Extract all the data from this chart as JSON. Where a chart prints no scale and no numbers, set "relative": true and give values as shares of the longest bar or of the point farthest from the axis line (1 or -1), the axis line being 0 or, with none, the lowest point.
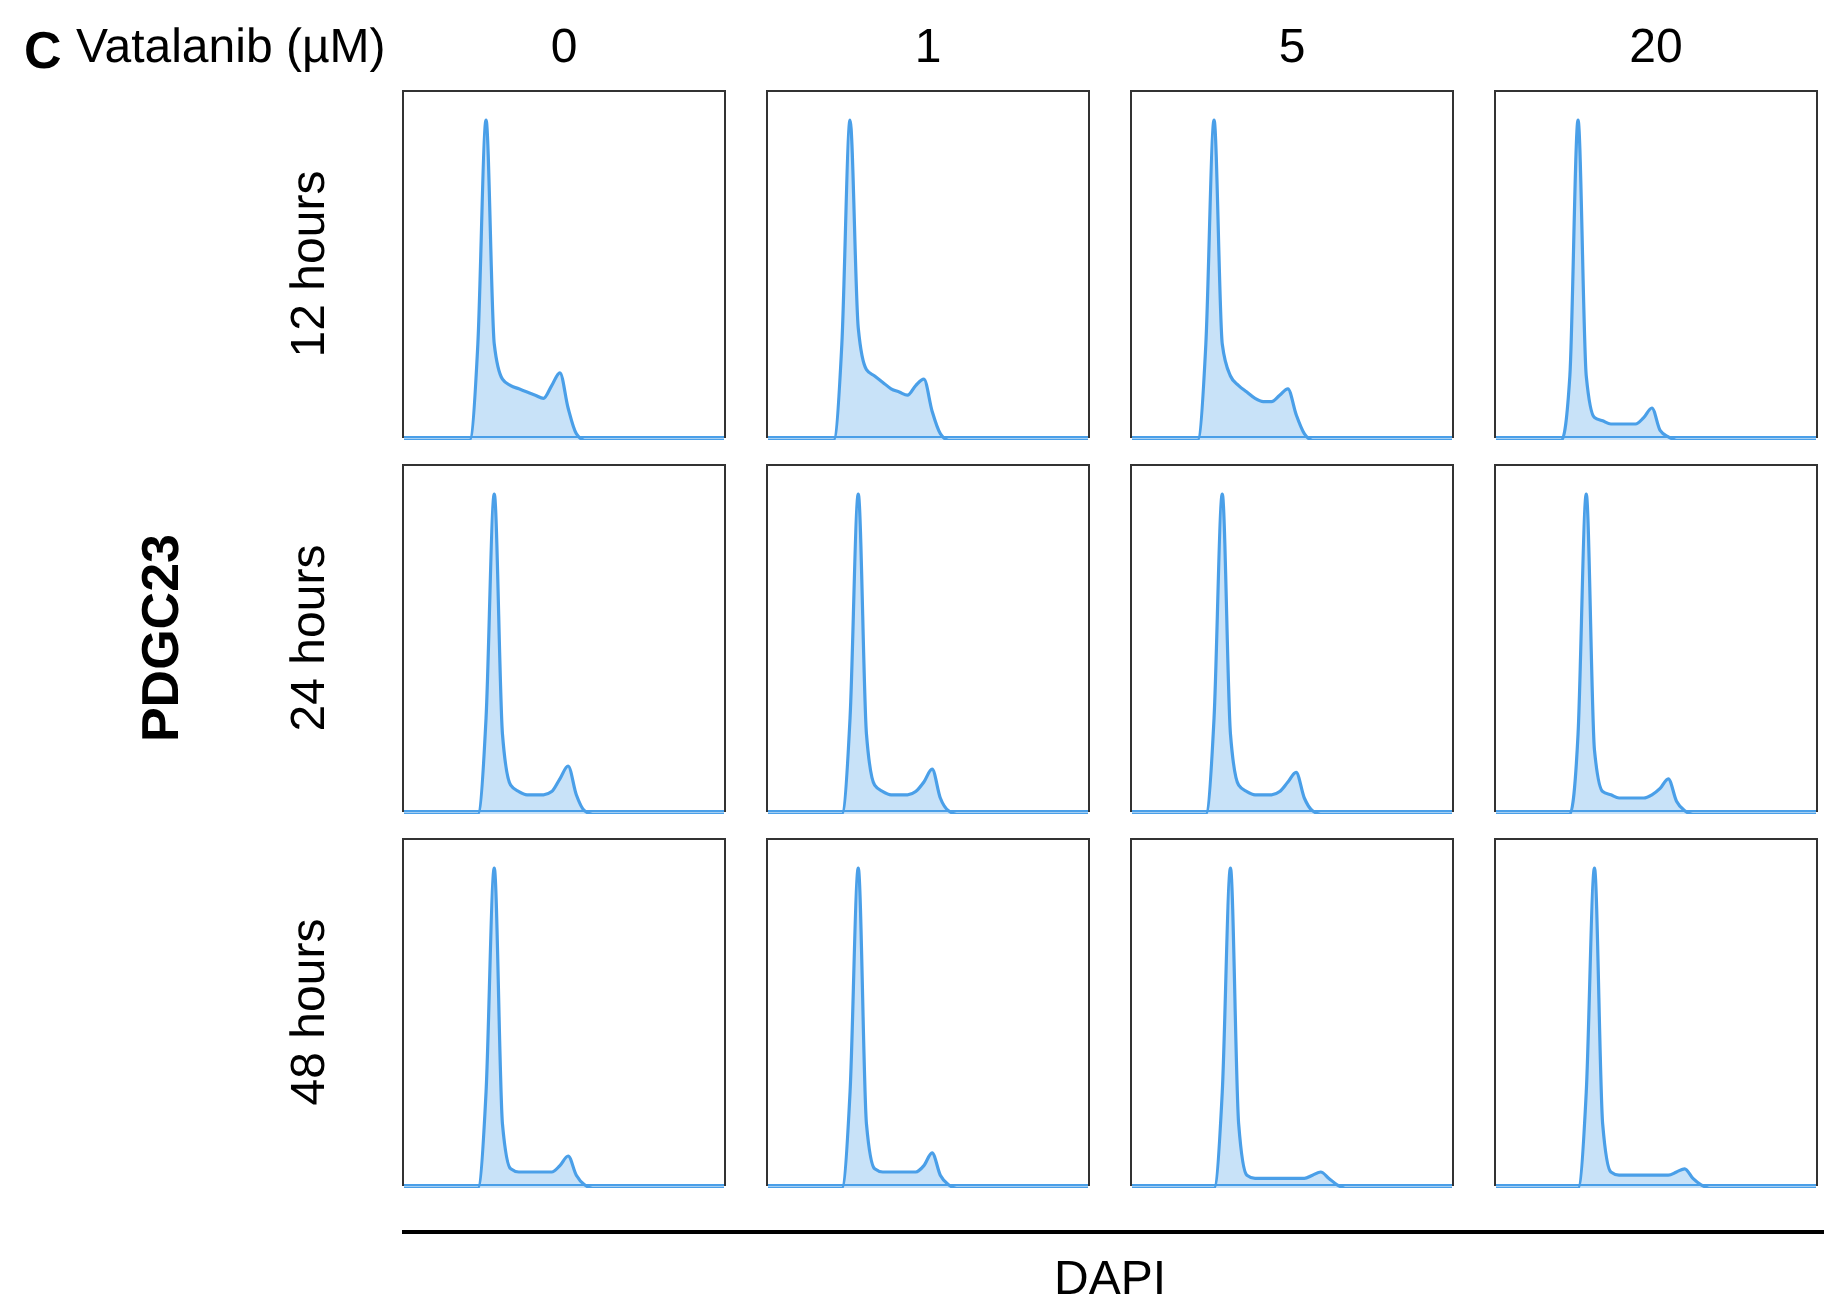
{
  "chart_data": [
    {
      "type": "area",
      "relative": true,
      "tick_labels": false,
      "title": "0",
      "ylabel": "12 hours",
      "annotations": [
        "C",
        "Vatalanib (µM)"
      ],
      "categories": [
        null,
        null,
        null,
        null,
        null,
        null,
        null,
        null,
        null,
        null,
        null,
        null,
        null,
        null,
        null,
        null,
        null,
        null,
        null,
        null,
        null,
        null,
        null,
        null,
        null,
        null,
        null,
        null,
        null,
        null,
        null,
        null,
        null,
        null,
        null,
        null,
        null,
        null,
        null,
        null
      ],
      "series": [
        {
          "color": "#4a9fe8",
          "values": [
            0,
            0,
            0,
            0,
            0,
            0,
            0,
            0,
            0,
            0.3,
            1,
            0.3,
            0.19,
            0.17,
            0.16,
            0.15,
            0.14,
            0.13,
            0.17,
            0.21,
            0.1,
            0.02,
            0,
            0,
            0,
            0,
            0,
            0,
            0,
            0,
            0,
            0,
            0,
            0,
            0,
            0,
            0,
            0,
            0,
            0
          ]
        }
      ]
    },
    {
      "type": "area",
      "relative": true,
      "tick_labels": false,
      "title": "1",
      "categories": [
        null,
        null,
        null,
        null,
        null,
        null,
        null,
        null,
        null,
        null,
        null,
        null,
        null,
        null,
        null,
        null,
        null,
        null,
        null,
        null,
        null,
        null,
        null,
        null,
        null,
        null,
        null,
        null,
        null,
        null,
        null,
        null,
        null,
        null,
        null,
        null,
        null,
        null,
        null,
        null
      ],
      "series": [
        {
          "color": "#4a9fe8",
          "values": [
            0,
            0,
            0,
            0,
            0,
            0,
            0,
            0,
            0,
            0.3,
            1,
            0.35,
            0.22,
            0.2,
            0.18,
            0.16,
            0.15,
            0.14,
            0.17,
            0.19,
            0.09,
            0.02,
            0,
            0,
            0,
            0,
            0,
            0,
            0,
            0,
            0,
            0,
            0,
            0,
            0,
            0,
            0,
            0,
            0,
            0
          ]
        }
      ]
    },
    {
      "type": "area",
      "relative": true,
      "tick_labels": false,
      "title": "5",
      "categories": [
        null,
        null,
        null,
        null,
        null,
        null,
        null,
        null,
        null,
        null,
        null,
        null,
        null,
        null,
        null,
        null,
        null,
        null,
        null,
        null,
        null,
        null,
        null,
        null,
        null,
        null,
        null,
        null,
        null,
        null,
        null,
        null,
        null,
        null,
        null,
        null,
        null,
        null,
        null,
        null
      ],
      "series": [
        {
          "color": "#4a9fe8",
          "values": [
            0,
            0,
            0,
            0,
            0,
            0,
            0,
            0,
            0,
            0.3,
            1,
            0.3,
            0.2,
            0.17,
            0.15,
            0.13,
            0.12,
            0.12,
            0.14,
            0.16,
            0.08,
            0.02,
            0,
            0,
            0,
            0,
            0,
            0,
            0,
            0,
            0,
            0,
            0,
            0,
            0,
            0,
            0,
            0,
            0,
            0
          ]
        }
      ]
    },
    {
      "type": "area",
      "relative": true,
      "tick_labels": false,
      "title": "20",
      "categories": [
        null,
        null,
        null,
        null,
        null,
        null,
        null,
        null,
        null,
        null,
        null,
        null,
        null,
        null,
        null,
        null,
        null,
        null,
        null,
        null,
        null,
        null,
        null,
        null,
        null,
        null,
        null,
        null,
        null,
        null,
        null,
        null,
        null,
        null,
        null,
        null,
        null,
        null,
        null,
        null
      ],
      "series": [
        {
          "color": "#4a9fe8",
          "values": [
            0,
            0,
            0,
            0,
            0,
            0,
            0,
            0,
            0,
            0.2,
            1,
            0.2,
            0.07,
            0.06,
            0.05,
            0.05,
            0.05,
            0.05,
            0.07,
            0.1,
            0.03,
            0.01,
            0,
            0,
            0,
            0,
            0,
            0,
            0,
            0,
            0,
            0,
            0,
            0,
            0,
            0,
            0,
            0,
            0,
            0
          ]
        }
      ]
    },
    {
      "type": "area",
      "relative": true,
      "tick_labels": false,
      "ylabel": "24 hours",
      "annotations": [
        "PDGC23"
      ],
      "categories": [
        null,
        null,
        null,
        null,
        null,
        null,
        null,
        null,
        null,
        null,
        null,
        null,
        null,
        null,
        null,
        null,
        null,
        null,
        null,
        null,
        null,
        null,
        null,
        null,
        null,
        null,
        null,
        null,
        null,
        null,
        null,
        null,
        null,
        null,
        null,
        null,
        null,
        null,
        null,
        null
      ],
      "series": [
        {
          "color": "#4a9fe8",
          "values": [
            0,
            0,
            0,
            0,
            0,
            0,
            0,
            0,
            0,
            0,
            0.3,
            1,
            0.25,
            0.09,
            0.07,
            0.06,
            0.06,
            0.06,
            0.07,
            0.11,
            0.15,
            0.06,
            0.01,
            0,
            0,
            0,
            0,
            0,
            0,
            0,
            0,
            0,
            0,
            0,
            0,
            0,
            0,
            0,
            0,
            0
          ]
        }
      ]
    },
    {
      "type": "area",
      "relative": true,
      "tick_labels": false,
      "categories": [
        null,
        null,
        null,
        null,
        null,
        null,
        null,
        null,
        null,
        null,
        null,
        null,
        null,
        null,
        null,
        null,
        null,
        null,
        null,
        null,
        null,
        null,
        null,
        null,
        null,
        null,
        null,
        null,
        null,
        null,
        null,
        null,
        null,
        null,
        null,
        null,
        null,
        null,
        null,
        null
      ],
      "series": [
        {
          "color": "#4a9fe8",
          "values": [
            0,
            0,
            0,
            0,
            0,
            0,
            0,
            0,
            0,
            0,
            0.3,
            1,
            0.25,
            0.09,
            0.07,
            0.06,
            0.06,
            0.06,
            0.07,
            0.1,
            0.14,
            0.05,
            0.01,
            0,
            0,
            0,
            0,
            0,
            0,
            0,
            0,
            0,
            0,
            0,
            0,
            0,
            0,
            0,
            0,
            0
          ]
        }
      ]
    },
    {
      "type": "area",
      "relative": true,
      "tick_labels": false,
      "categories": [
        null,
        null,
        null,
        null,
        null,
        null,
        null,
        null,
        null,
        null,
        null,
        null,
        null,
        null,
        null,
        null,
        null,
        null,
        null,
        null,
        null,
        null,
        null,
        null,
        null,
        null,
        null,
        null,
        null,
        null,
        null,
        null,
        null,
        null,
        null,
        null,
        null,
        null,
        null,
        null
      ],
      "series": [
        {
          "color": "#4a9fe8",
          "values": [
            0,
            0,
            0,
            0,
            0,
            0,
            0,
            0,
            0,
            0,
            0.3,
            1,
            0.25,
            0.09,
            0.07,
            0.06,
            0.06,
            0.06,
            0.07,
            0.1,
            0.13,
            0.05,
            0.01,
            0,
            0,
            0,
            0,
            0,
            0,
            0,
            0,
            0,
            0,
            0,
            0,
            0,
            0,
            0,
            0,
            0
          ]
        }
      ]
    },
    {
      "type": "area",
      "relative": true,
      "tick_labels": false,
      "categories": [
        null,
        null,
        null,
        null,
        null,
        null,
        null,
        null,
        null,
        null,
        null,
        null,
        null,
        null,
        null,
        null,
        null,
        null,
        null,
        null,
        null,
        null,
        null,
        null,
        null,
        null,
        null,
        null,
        null,
        null,
        null,
        null,
        null,
        null,
        null,
        null,
        null,
        null,
        null,
        null
      ],
      "series": [
        {
          "color": "#4a9fe8",
          "values": [
            0,
            0,
            0,
            0,
            0,
            0,
            0,
            0,
            0,
            0,
            0.25,
            1,
            0.2,
            0.07,
            0.06,
            0.05,
            0.05,
            0.05,
            0.05,
            0.06,
            0.08,
            0.11,
            0.04,
            0.01,
            0,
            0,
            0,
            0,
            0,
            0,
            0,
            0,
            0,
            0,
            0,
            0,
            0,
            0,
            0,
            0
          ]
        }
      ]
    },
    {
      "type": "area",
      "relative": true,
      "tick_labels": false,
      "ylabel": "48 hours",
      "categories": [
        null,
        null,
        null,
        null,
        null,
        null,
        null,
        null,
        null,
        null,
        null,
        null,
        null,
        null,
        null,
        null,
        null,
        null,
        null,
        null,
        null,
        null,
        null,
        null,
        null,
        null,
        null,
        null,
        null,
        null,
        null,
        null,
        null,
        null,
        null,
        null,
        null,
        null,
        null,
        null
      ],
      "series": [
        {
          "color": "#4a9fe8",
          "values": [
            0,
            0,
            0,
            0,
            0,
            0,
            0,
            0,
            0,
            0,
            0.3,
            1,
            0.2,
            0.06,
            0.05,
            0.05,
            0.05,
            0.05,
            0.05,
            0.07,
            0.1,
            0.04,
            0.01,
            0,
            0,
            0,
            0,
            0,
            0,
            0,
            0,
            0,
            0,
            0,
            0,
            0,
            0,
            0,
            0,
            0
          ]
        }
      ]
    },
    {
      "type": "area",
      "relative": true,
      "tick_labels": false,
      "xlabel": "DAPI",
      "categories": [
        null,
        null,
        null,
        null,
        null,
        null,
        null,
        null,
        null,
        null,
        null,
        null,
        null,
        null,
        null,
        null,
        null,
        null,
        null,
        null,
        null,
        null,
        null,
        null,
        null,
        null,
        null,
        null,
        null,
        null,
        null,
        null,
        null,
        null,
        null,
        null,
        null,
        null,
        null,
        null
      ],
      "series": [
        {
          "color": "#4a9fe8",
          "values": [
            0,
            0,
            0,
            0,
            0,
            0,
            0,
            0,
            0,
            0,
            0.3,
            1,
            0.2,
            0.06,
            0.05,
            0.05,
            0.05,
            0.05,
            0.05,
            0.07,
            0.11,
            0.04,
            0.01,
            0,
            0,
            0,
            0,
            0,
            0,
            0,
            0,
            0,
            0,
            0,
            0,
            0,
            0,
            0,
            0,
            0
          ]
        }
      ]
    },
    {
      "type": "area",
      "relative": true,
      "tick_labels": false,
      "categories": [
        null,
        null,
        null,
        null,
        null,
        null,
        null,
        null,
        null,
        null,
        null,
        null,
        null,
        null,
        null,
        null,
        null,
        null,
        null,
        null,
        null,
        null,
        null,
        null,
        null,
        null,
        null,
        null,
        null,
        null,
        null,
        null,
        null,
        null,
        null,
        null,
        null,
        null,
        null,
        null
      ],
      "series": [
        {
          "color": "#4a9fe8",
          "values": [
            0,
            0,
            0,
            0,
            0,
            0,
            0,
            0,
            0,
            0,
            0,
            0.3,
            1,
            0.2,
            0.04,
            0.03,
            0.03,
            0.03,
            0.03,
            0.03,
            0.03,
            0.03,
            0.04,
            0.05,
            0.03,
            0.01,
            0,
            0,
            0,
            0,
            0,
            0,
            0,
            0,
            0,
            0,
            0,
            0,
            0,
            0
          ]
        }
      ]
    },
    {
      "type": "area",
      "relative": true,
      "tick_labels": false,
      "categories": [
        null,
        null,
        null,
        null,
        null,
        null,
        null,
        null,
        null,
        null,
        null,
        null,
        null,
        null,
        null,
        null,
        null,
        null,
        null,
        null,
        null,
        null,
        null,
        null,
        null,
        null,
        null,
        null,
        null,
        null,
        null,
        null,
        null,
        null,
        null,
        null,
        null,
        null,
        null,
        null
      ],
      "series": [
        {
          "color": "#4a9fe8",
          "values": [
            0,
            0,
            0,
            0,
            0,
            0,
            0,
            0,
            0,
            0,
            0,
            0.3,
            1,
            0.2,
            0.05,
            0.04,
            0.04,
            0.04,
            0.04,
            0.04,
            0.04,
            0.04,
            0.05,
            0.06,
            0.03,
            0.01,
            0,
            0,
            0,
            0,
            0,
            0,
            0,
            0,
            0,
            0,
            0,
            0,
            0,
            0
          ]
        }
      ]
    }
  ]
}
